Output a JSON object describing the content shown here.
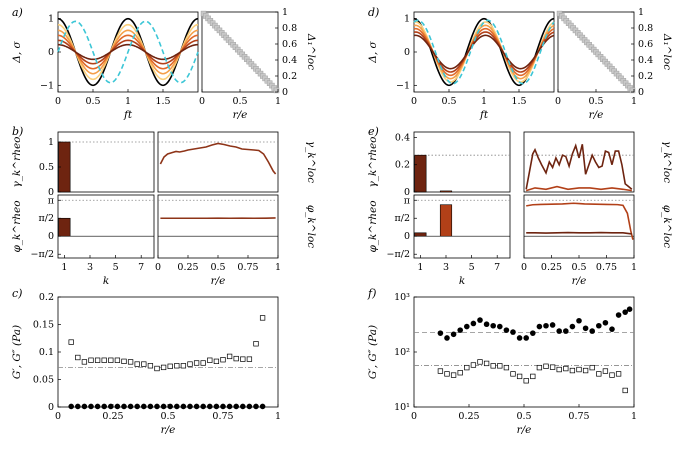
{
  "chart_data": [
    {
      "id": "a_left",
      "panel": "a)",
      "type": "line",
      "xlabel": "ft",
      "ylabel": "Δ, σ",
      "xlim": [
        0,
        2
      ],
      "ylim": [
        -1.2,
        1.2
      ],
      "xticks": [
        "0",
        "0.5",
        "1",
        "1.5"
      ],
      "yticks": [
        "−1",
        "0",
        "1"
      ],
      "series": [
        {
          "kind": "sine",
          "amp": 1.0,
          "phase_deg": 0,
          "color": "#000000",
          "dash": false
        },
        {
          "kind": "sine",
          "amp": 0.82,
          "phase_deg": 0,
          "color": "#fbd07c",
          "dash": false
        },
        {
          "kind": "sine",
          "amp": 0.65,
          "phase_deg": 0,
          "color": "#f5a04a",
          "dash": false
        },
        {
          "kind": "sine",
          "amp": 0.5,
          "phase_deg": 0,
          "color": "#e06a2a",
          "dash": false
        },
        {
          "kind": "sine",
          "amp": 0.35,
          "phase_deg": 0,
          "color": "#b24018",
          "dash": false
        },
        {
          "kind": "sine",
          "amp": 0.22,
          "phase_deg": 0,
          "color": "#6e2410",
          "dash": false
        },
        {
          "kind": "sine",
          "amp": 0.92,
          "phase_deg": 90,
          "color": "#3cc6d6",
          "dash": true
        }
      ]
    },
    {
      "id": "a_right",
      "type": "scatter",
      "xlabel": "r/e",
      "ylabel": "Δ₁^loc",
      "xlim": [
        0,
        1
      ],
      "ylim": [
        0,
        1
      ],
      "xticks": [
        "0",
        "0.5",
        "1"
      ],
      "yticks": [
        "0",
        "0.2",
        "0.4",
        "0.6",
        "0.8",
        "1"
      ],
      "x": [
        0.02,
        0.05,
        0.08,
        0.11,
        0.14,
        0.17,
        0.2,
        0.23,
        0.26,
        0.29,
        0.32,
        0.35,
        0.38,
        0.41,
        0.44,
        0.47,
        0.5,
        0.53,
        0.56,
        0.59,
        0.62,
        0.65,
        0.68,
        0.71,
        0.74,
        0.77,
        0.8,
        0.83,
        0.86,
        0.89,
        0.92,
        0.95,
        0.98
      ],
      "y": [
        0.98,
        0.95,
        0.92,
        0.89,
        0.86,
        0.83,
        0.8,
        0.77,
        0.74,
        0.71,
        0.68,
        0.65,
        0.62,
        0.59,
        0.56,
        0.53,
        0.5,
        0.47,
        0.44,
        0.41,
        0.38,
        0.35,
        0.32,
        0.29,
        0.26,
        0.23,
        0.2,
        0.17,
        0.14,
        0.11,
        0.08,
        0.05,
        0.02
      ]
    },
    {
      "id": "b_top_left",
      "panel": "b)",
      "type": "bar",
      "ylabel": "γ_k^rheo",
      "xlim": [
        0.5,
        8
      ],
      "ylim": [
        0,
        1.2
      ],
      "yticks": [
        "0",
        "0.5",
        "1"
      ],
      "ref_line": 1.0,
      "categories": [
        1
      ],
      "values": [
        1.0
      ],
      "bar_colors": [
        "#6e2410"
      ]
    },
    {
      "id": "b_top_right",
      "type": "line",
      "ylabel": "γ_k^loc",
      "xlim": [
        0,
        1
      ],
      "ylim": [
        0,
        1.2
      ],
      "ref_line": 1.0,
      "series": [
        {
          "color": "#8e3418",
          "x": [
            0.02,
            0.05,
            0.08,
            0.12,
            0.15,
            0.18,
            0.22,
            0.25,
            0.3,
            0.35,
            0.4,
            0.45,
            0.5,
            0.55,
            0.6,
            0.65,
            0.7,
            0.75,
            0.8,
            0.84,
            0.88,
            0.92,
            0.96,
            0.98
          ],
          "y": [
            0.56,
            0.7,
            0.76,
            0.79,
            0.81,
            0.8,
            0.82,
            0.84,
            0.86,
            0.88,
            0.9,
            0.94,
            0.97,
            0.95,
            0.92,
            0.9,
            0.86,
            0.85,
            0.84,
            0.83,
            0.76,
            0.6,
            0.42,
            0.36
          ]
        }
      ]
    },
    {
      "id": "b_bottom_left",
      "type": "bar",
      "xlabel": "k",
      "ylabel": "φ_k^rheo",
      "xlim": [
        0.5,
        8
      ],
      "ylim": [
        -1.9,
        3.6
      ],
      "xticks": [
        "1",
        "3",
        "5",
        "7"
      ],
      "yticks": [
        "−π/2",
        "0",
        "π/2",
        "π"
      ],
      "ref_line": 3.14159,
      "categories": [
        1
      ],
      "values": [
        1.57
      ],
      "bar_colors": [
        "#6e2410"
      ]
    },
    {
      "id": "b_bottom_right",
      "type": "line",
      "xlabel": "r/e",
      "ylabel": "φ_k^loc",
      "xlim": [
        0,
        1
      ],
      "ylim": [
        -1.9,
        3.6
      ],
      "ref_line": 3.14159,
      "xticks": [
        "0",
        "0.25",
        "0.5",
        "0.75",
        "1"
      ],
      "series": [
        {
          "color": "#8e3418",
          "x": [
            0.02,
            0.1,
            0.2,
            0.3,
            0.4,
            0.5,
            0.6,
            0.7,
            0.8,
            0.9,
            0.98
          ],
          "y": [
            1.57,
            1.57,
            1.57,
            1.57,
            1.57,
            1.58,
            1.57,
            1.58,
            1.57,
            1.58,
            1.6
          ]
        }
      ]
    },
    {
      "id": "c",
      "panel": "c)",
      "type": "scatter",
      "xlabel": "r/e",
      "ylabel": "G′, G″ (Pa)",
      "xlim": [
        0,
        1
      ],
      "ylim": [
        0,
        0.2
      ],
      "xticks": [
        "0",
        "0.25",
        "0.5",
        "0.75",
        "1"
      ],
      "yticks": [
        "0",
        "0.05",
        "0.1",
        "0.15",
        "0.2"
      ],
      "ref_lines": [
        {
          "y": 0.072,
          "style": "dashdot"
        }
      ],
      "series": [
        {
          "marker": "open-square",
          "x": [
            0.06,
            0.09,
            0.12,
            0.15,
            0.18,
            0.21,
            0.24,
            0.27,
            0.3,
            0.33,
            0.36,
            0.39,
            0.42,
            0.45,
            0.48,
            0.51,
            0.54,
            0.57,
            0.6,
            0.63,
            0.66,
            0.69,
            0.72,
            0.75,
            0.78,
            0.81,
            0.84,
            0.87,
            0.9,
            0.93
          ],
          "y": [
            0.118,
            0.09,
            0.082,
            0.085,
            0.085,
            0.085,
            0.085,
            0.085,
            0.083,
            0.082,
            0.078,
            0.078,
            0.075,
            0.07,
            0.072,
            0.074,
            0.075,
            0.075,
            0.078,
            0.08,
            0.08,
            0.085,
            0.083,
            0.086,
            0.092,
            0.088,
            0.087,
            0.087,
            0.115,
            0.162
          ]
        },
        {
          "marker": "filled-circle",
          "x": [
            0.06,
            0.09,
            0.12,
            0.15,
            0.18,
            0.21,
            0.24,
            0.27,
            0.3,
            0.33,
            0.36,
            0.39,
            0.42,
            0.45,
            0.48,
            0.51,
            0.54,
            0.57,
            0.6,
            0.63,
            0.66,
            0.69,
            0.72,
            0.75,
            0.78,
            0.81,
            0.84,
            0.87,
            0.9,
            0.93
          ],
          "y": [
            0.001,
            0.001,
            0.001,
            0.001,
            0.001,
            0.001,
            0.001,
            0.001,
            0.001,
            0.001,
            0.001,
            0.001,
            0.001,
            0.001,
            0.001,
            0.001,
            0.001,
            0.001,
            0.001,
            0.001,
            0.001,
            0.001,
            0.001,
            0.001,
            0.001,
            0.001,
            0.001,
            0.001,
            0.001,
            0.001
          ]
        }
      ]
    },
    {
      "id": "d_left",
      "panel": "d)",
      "type": "line",
      "xlabel": "ft",
      "ylabel": "Δ, σ",
      "xlim": [
        0,
        2
      ],
      "ylim": [
        -1.2,
        1.2
      ],
      "xticks": [
        "0",
        "0.5",
        "1",
        "1.5"
      ],
      "yticks": [
        "−1",
        "0",
        "1"
      ],
      "series": [
        {
          "kind": "sine",
          "amp": 1.0,
          "phase_deg": 0,
          "color": "#000000",
          "dash": false
        },
        {
          "kind": "sine",
          "amp": 0.9,
          "phase_deg": 8,
          "color": "#fbd07c",
          "dash": false
        },
        {
          "kind": "sine",
          "amp": 0.8,
          "phase_deg": 8,
          "color": "#f5a04a",
          "dash": false
        },
        {
          "kind": "sine",
          "amp": 0.7,
          "phase_deg": 8,
          "color": "#e06a2a",
          "dash": false
        },
        {
          "kind": "sine",
          "amp": 0.6,
          "phase_deg": 8,
          "color": "#b24018",
          "dash": false
        },
        {
          "kind": "sine",
          "amp": 0.5,
          "phase_deg": 8,
          "color": "#6e2410",
          "dash": false
        },
        {
          "kind": "sine",
          "amp": 0.95,
          "phase_deg": 20,
          "color": "#3cc6d6",
          "dash": true
        }
      ]
    },
    {
      "id": "d_right",
      "type": "scatter",
      "xlabel": "r/e",
      "ylabel": "Δ₁^loc",
      "xlim": [
        0,
        1
      ],
      "ylim": [
        0,
        1
      ],
      "xticks": [
        "0",
        "0.5",
        "1"
      ],
      "yticks": [
        "0",
        "0.2",
        "0.4",
        "0.6",
        "0.8",
        "1"
      ],
      "x": [
        0.02,
        0.05,
        0.08,
        0.11,
        0.14,
        0.17,
        0.2,
        0.23,
        0.26,
        0.29,
        0.32,
        0.35,
        0.38,
        0.41,
        0.44,
        0.47,
        0.5,
        0.53,
        0.56,
        0.59,
        0.62,
        0.65,
        0.68,
        0.71,
        0.74,
        0.77,
        0.8,
        0.83,
        0.86,
        0.89,
        0.92,
        0.95,
        0.98
      ],
      "y": [
        0.98,
        0.95,
        0.92,
        0.89,
        0.86,
        0.83,
        0.8,
        0.77,
        0.74,
        0.71,
        0.68,
        0.65,
        0.62,
        0.59,
        0.56,
        0.53,
        0.5,
        0.47,
        0.44,
        0.41,
        0.38,
        0.35,
        0.32,
        0.29,
        0.26,
        0.23,
        0.2,
        0.17,
        0.14,
        0.11,
        0.08,
        0.05,
        0.02
      ]
    },
    {
      "id": "e_top_left",
      "panel": "e)",
      "type": "bar",
      "ylabel": "γ_k^rheo",
      "xlim": [
        0.5,
        8
      ],
      "ylim": [
        0,
        0.44
      ],
      "yticks": [
        "0",
        "0.2",
        "0.4"
      ],
      "ref_line": 0.27,
      "categories": [
        1,
        3
      ],
      "values": [
        0.27,
        0.008
      ],
      "bar_colors": [
        "#6e2410",
        "#b24018"
      ]
    },
    {
      "id": "e_top_right",
      "type": "line",
      "ylabel": "γ_k^loc",
      "xlim": [
        0,
        1
      ],
      "ylim": [
        0,
        0.44
      ],
      "ref_line": 0.27,
      "series": [
        {
          "color": "#6e2410",
          "x": [
            0.02,
            0.05,
            0.08,
            0.1,
            0.13,
            0.16,
            0.2,
            0.23,
            0.26,
            0.29,
            0.32,
            0.35,
            0.38,
            0.41,
            0.44,
            0.47,
            0.5,
            0.53,
            0.56,
            0.59,
            0.62,
            0.65,
            0.68,
            0.71,
            0.74,
            0.77,
            0.8,
            0.83,
            0.86,
            0.89,
            0.92,
            0.95,
            0.98
          ],
          "y": [
            0.02,
            0.15,
            0.28,
            0.31,
            0.25,
            0.2,
            0.14,
            0.22,
            0.18,
            0.25,
            0.2,
            0.27,
            0.26,
            0.19,
            0.28,
            0.34,
            0.25,
            0.35,
            0.13,
            0.2,
            0.27,
            0.22,
            0.18,
            0.19,
            0.3,
            0.29,
            0.2,
            0.3,
            0.3,
            0.2,
            0.06,
            0.04,
            0.02
          ]
        },
        {
          "color": "#b24018",
          "x": [
            0.02,
            0.1,
            0.2,
            0.3,
            0.4,
            0.5,
            0.6,
            0.7,
            0.8,
            0.9,
            0.98
          ],
          "y": [
            0.01,
            0.03,
            0.02,
            0.04,
            0.02,
            0.03,
            0.03,
            0.02,
            0.03,
            0.02,
            0.01
          ]
        }
      ]
    },
    {
      "id": "e_bottom_left",
      "type": "bar",
      "xlabel": "k",
      "ylabel": "φ_k^rheo",
      "xlim": [
        0.5,
        8
      ],
      "ylim": [
        -1.9,
        3.6
      ],
      "xticks": [
        "1",
        "3",
        "5",
        "7"
      ],
      "yticks": [
        "−π/2",
        "0",
        "π/2",
        "π"
      ],
      "ref_line": 3.14159,
      "categories": [
        1,
        3
      ],
      "values": [
        0.3,
        2.75
      ],
      "bar_colors": [
        "#6e2410",
        "#b24018"
      ]
    },
    {
      "id": "e_bottom_right",
      "type": "line",
      "xlabel": "r/e",
      "ylabel": "φ_k^loc",
      "xlim": [
        0,
        1
      ],
      "ylim": [
        -1.9,
        3.6
      ],
      "ref_line": 3.14159,
      "xticks": [
        "0",
        "0.25",
        "0.5",
        "0.75",
        "1"
      ],
      "series": [
        {
          "color": "#b24018",
          "x": [
            0.02,
            0.08,
            0.15,
            0.25,
            0.35,
            0.45,
            0.5,
            0.55,
            0.65,
            0.75,
            0.85,
            0.9,
            0.94,
            0.97,
            0.99
          ],
          "y": [
            2.65,
            2.75,
            2.78,
            2.8,
            2.82,
            2.88,
            2.85,
            2.82,
            2.8,
            2.78,
            2.76,
            2.7,
            2.0,
            0.5,
            -0.3
          ]
        },
        {
          "color": "#6e2410",
          "x": [
            0.02,
            0.1,
            0.2,
            0.3,
            0.4,
            0.5,
            0.6,
            0.7,
            0.8,
            0.9,
            0.98
          ],
          "y": [
            0.3,
            0.3,
            0.28,
            0.3,
            0.32,
            0.3,
            0.3,
            0.32,
            0.3,
            0.3,
            0.2
          ]
        }
      ]
    },
    {
      "id": "f",
      "panel": "f)",
      "type": "scatter",
      "yscale": "log",
      "xlabel": "r/e",
      "ylabel": "G′, G″ (Pa)",
      "xlim": [
        0,
        1
      ],
      "ylim": [
        10,
        1000
      ],
      "xticks": [
        "0",
        "0.25",
        "0.5",
        "0.75",
        "1"
      ],
      "yticks": [
        "10¹",
        "10²",
        "10³"
      ],
      "ref_lines": [
        {
          "y": 225,
          "style": "dashed"
        },
        {
          "y": 57,
          "style": "dashdot"
        }
      ],
      "series": [
        {
          "marker": "filled-circle",
          "x": [
            0.12,
            0.15,
            0.18,
            0.21,
            0.24,
            0.27,
            0.3,
            0.33,
            0.36,
            0.39,
            0.42,
            0.45,
            0.48,
            0.51,
            0.54,
            0.57,
            0.6,
            0.63,
            0.66,
            0.69,
            0.72,
            0.75,
            0.78,
            0.81,
            0.84,
            0.87,
            0.9,
            0.93,
            0.96,
            0.98
          ],
          "y": [
            220,
            180,
            210,
            250,
            290,
            330,
            380,
            320,
            300,
            290,
            250,
            230,
            180,
            180,
            220,
            290,
            300,
            310,
            240,
            240,
            290,
            370,
            270,
            240,
            300,
            340,
            260,
            470,
            530,
            600
          ]
        },
        {
          "marker": "open-square",
          "x": [
            0.12,
            0.15,
            0.18,
            0.21,
            0.24,
            0.27,
            0.3,
            0.33,
            0.36,
            0.39,
            0.42,
            0.45,
            0.48,
            0.51,
            0.54,
            0.57,
            0.6,
            0.63,
            0.66,
            0.69,
            0.72,
            0.75,
            0.78,
            0.81,
            0.84,
            0.87,
            0.9,
            0.93,
            0.96
          ],
          "y": [
            45,
            40,
            38,
            42,
            52,
            58,
            66,
            62,
            56,
            56,
            52,
            40,
            36,
            30,
            36,
            52,
            55,
            53,
            48,
            50,
            46,
            48,
            46,
            52,
            40,
            45,
            38,
            40,
            20
          ]
        }
      ]
    }
  ]
}
